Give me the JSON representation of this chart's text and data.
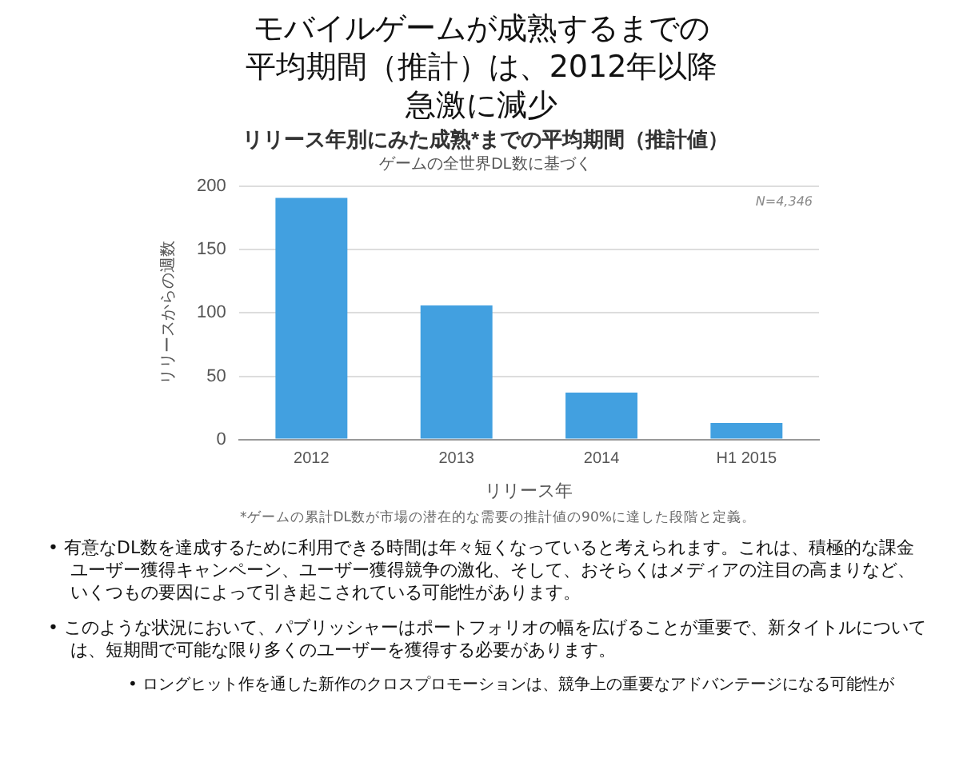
{
  "chart_data": {
    "type": "bar",
    "title": "モバイルゲームが成熟するまでの平均期間（推計）は、2012年以降急激に減少",
    "subtitle": "リリース年別にみた成熟*までの平均期間（推計値）",
    "xlabel": "リリース年",
    "ylabel": "リリースからの週数",
    "categories": [
      "2012",
      "2013",
      "2014",
      "H1 2015"
    ],
    "values": [
      191,
      106,
      37,
      13
    ],
    "color": "#42a0e0",
    "ylim": [
      0,
      200
    ],
    "yticks": [
      0,
      50,
      100,
      150,
      200
    ],
    "grid": "y",
    "annotations": [
      "ゲームの全世界DL数に基づく",
      "N=4,346",
      "*ゲームの累計DL数が市場の潜在的な需要の推計値の90%に達した段階と定義。",
      "• 有意なDL数を達成するために利用できる時間は年々短くなっていると考えられます。これは、積極的な課金ユーザー獲得キャンペーン、ユーザー獲得競争の激化、そして、おそらくはメディアの注目の高まりなど、いくつもの要因によって引き起こされている可能性があります。",
      "• このような状況において、パブリッシャーはポートフォリオの幅を広げることが重要で、新タイトルについては、短期間で可能な限り多くのユーザーを獲得する必要があります。",
      "• ロングヒット作を通した新作のクロスプロモーションは、競争上の重要なアドバンテージになる可能性が"
    ]
  }
}
